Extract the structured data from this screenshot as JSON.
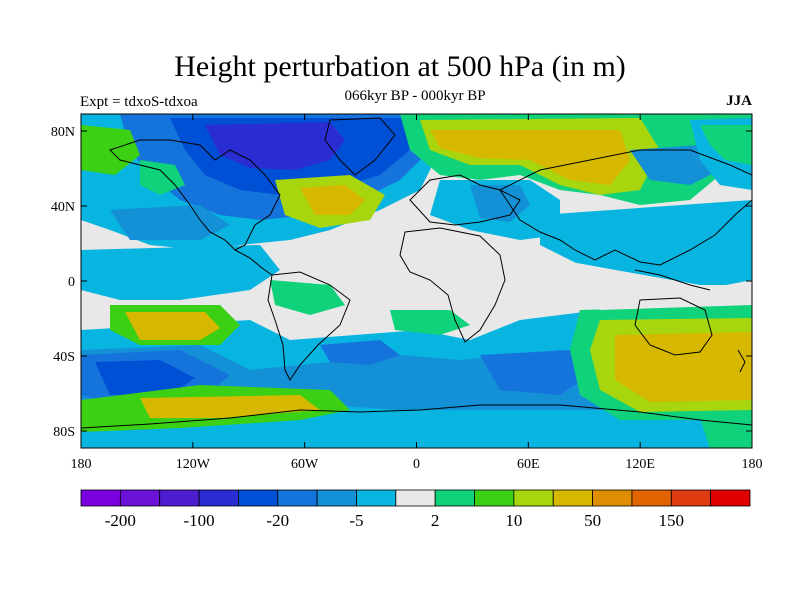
{
  "title": "Height perturbation at 500 hPa (in m)",
  "subtitle": "066kyr BP - 000kyr BP",
  "left_label": "Expt = tdxoS-tdxoa",
  "right_label": "JJA",
  "y_ticks": [
    "80N",
    "40N",
    "0",
    "40S",
    "80S"
  ],
  "x_ticks": [
    "180",
    "120W",
    "60W",
    "0",
    "60E",
    "120E",
    "180"
  ],
  "colorbar": {
    "colors": [
      "#7a00e0",
      "#6a12d8",
      "#4c1ed0",
      "#2a2ed2",
      "#0050d6",
      "#1574dc",
      "#1390d6",
      "#08b4e0",
      "#e8e8e8",
      "#10d27a",
      "#3cd014",
      "#a8d60e",
      "#d6b800",
      "#de8e00",
      "#e06400",
      "#e03a10",
      "#e00000"
    ],
    "labels": [
      {
        "text": "-200",
        "edge": 1
      },
      {
        "text": "-100",
        "edge": 3
      },
      {
        "text": "-20",
        "edge": 5
      },
      {
        "text": "-5",
        "edge": 7
      },
      {
        "text": "2",
        "edge": 9
      },
      {
        "text": "10",
        "edge": 11
      },
      {
        "text": "50",
        "edge": 13
      },
      {
        "text": "150",
        "edge": 15
      }
    ]
  },
  "fill_colors": {
    "neutral": "#e8e8e8",
    "cyan": "#08b4e0",
    "lightblue": "#1390d6",
    "blue": "#1574dc",
    "darkblue": "#0050d6",
    "royal": "#2a2ed2",
    "green": "#10d27a",
    "lime": "#3cd014",
    "yellowgreen": "#a8d60e",
    "gold": "#d6b800",
    "orange": "#de8e00"
  }
}
